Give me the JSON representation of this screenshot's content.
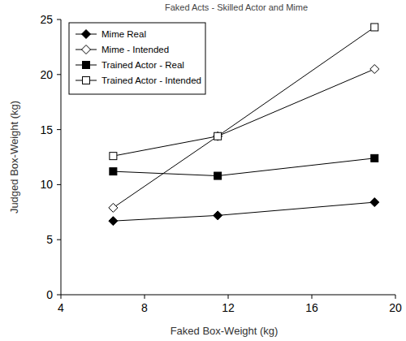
{
  "chart_data": {
    "type": "line",
    "title": "Faked Acts - Skilled Actor and Mime",
    "x_label": "Faked Box-Weight (kg)",
    "y_label": "Judged Box-Weight (kg)",
    "x": [
      6.5,
      11.5,
      19
    ],
    "series": [
      {
        "name": "Mime Real",
        "color": "#000000",
        "marker": "diamond",
        "line_style": "solid",
        "values": [
          6.7,
          7.2,
          8.4
        ]
      },
      {
        "name": "Mime - Intended",
        "color": "#000000",
        "marker": "diamond-open",
        "line_style": "solid",
        "values": [
          7.9,
          14.4,
          20.5
        ]
      },
      {
        "name": "Trained Actor - Real",
        "color": "#000000",
        "marker": "square",
        "line_style": "solid",
        "values": [
          11.2,
          10.8,
          12.4
        ]
      },
      {
        "name": "Trained Actor - Intended",
        "color": "#000000",
        "marker": "square-open",
        "line_style": "solid",
        "values": [
          12.6,
          14.4,
          24.3
        ]
      }
    ],
    "xlim": [
      4,
      20
    ],
    "xticks": [
      4,
      8,
      12,
      16,
      20
    ],
    "ylim": [
      0,
      25
    ],
    "yticks": [
      0,
      5,
      10,
      15,
      20,
      25
    ],
    "grid": false,
    "legend": "upper-left"
  }
}
